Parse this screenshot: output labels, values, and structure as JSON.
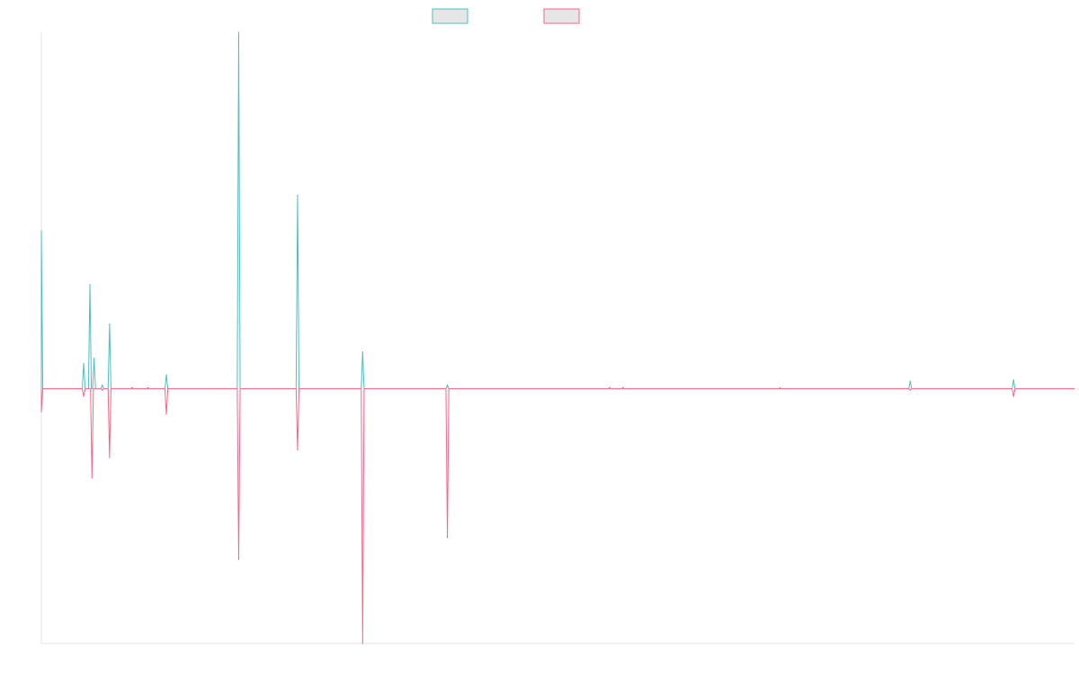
{
  "colors": {
    "teal": "#4bc0c0",
    "pink": "#ff6384",
    "legend_fill": "#e6e6e6",
    "axis": "#e6e6e6",
    "zero_line": "#9ba3ad"
  },
  "legend": {
    "placement": "top-center",
    "entries": [
      {
        "series": 0,
        "label": ""
      },
      {
        "series": 1,
        "label": ""
      }
    ]
  },
  "chart_data": {
    "type": "line",
    "title": "",
    "xlabel": "",
    "ylabel": "",
    "tick_labels_visible": false,
    "grid": false,
    "xlim": [
      0,
      1000
    ],
    "ylim": [
      -100,
      140
    ],
    "series": [
      {
        "color": "#4bc0c0",
        "peaks": [
          {
            "x": 0,
            "y": 62
          },
          {
            "x": 41,
            "y": 10
          },
          {
            "x": 47,
            "y": 41
          },
          {
            "x": 51,
            "y": 12
          },
          {
            "x": 59,
            "y": 1.5
          },
          {
            "x": 66,
            "y": 25.5
          },
          {
            "x": 88,
            "y": 0.5
          },
          {
            "x": 103,
            "y": 0.5
          },
          {
            "x": 121,
            "y": 5.5
          },
          {
            "x": 191,
            "y": 140
          },
          {
            "x": 248,
            "y": 76
          },
          {
            "x": 311,
            "y": 14.5
          },
          {
            "x": 393,
            "y": 1.5
          },
          {
            "x": 550,
            "y": 0.5
          },
          {
            "x": 563,
            "y": 0.5
          },
          {
            "x": 715,
            "y": 0.4
          },
          {
            "x": 841,
            "y": 3
          },
          {
            "x": 941,
            "y": 3.5
          }
        ]
      },
      {
        "color": "#ff6384",
        "peaks": [
          {
            "x": 0,
            "y": -9
          },
          {
            "x": 41,
            "y": -3
          },
          {
            "x": 49,
            "y": -35
          },
          {
            "x": 59,
            "y": -0.5
          },
          {
            "x": 66,
            "y": -27
          },
          {
            "x": 121,
            "y": -10
          },
          {
            "x": 191,
            "y": -67
          },
          {
            "x": 248,
            "y": -24
          },
          {
            "x": 311,
            "y": -100
          },
          {
            "x": 393,
            "y": -58.5
          },
          {
            "x": 841,
            "y": -0.5
          },
          {
            "x": 941,
            "y": -3
          }
        ]
      }
    ]
  }
}
